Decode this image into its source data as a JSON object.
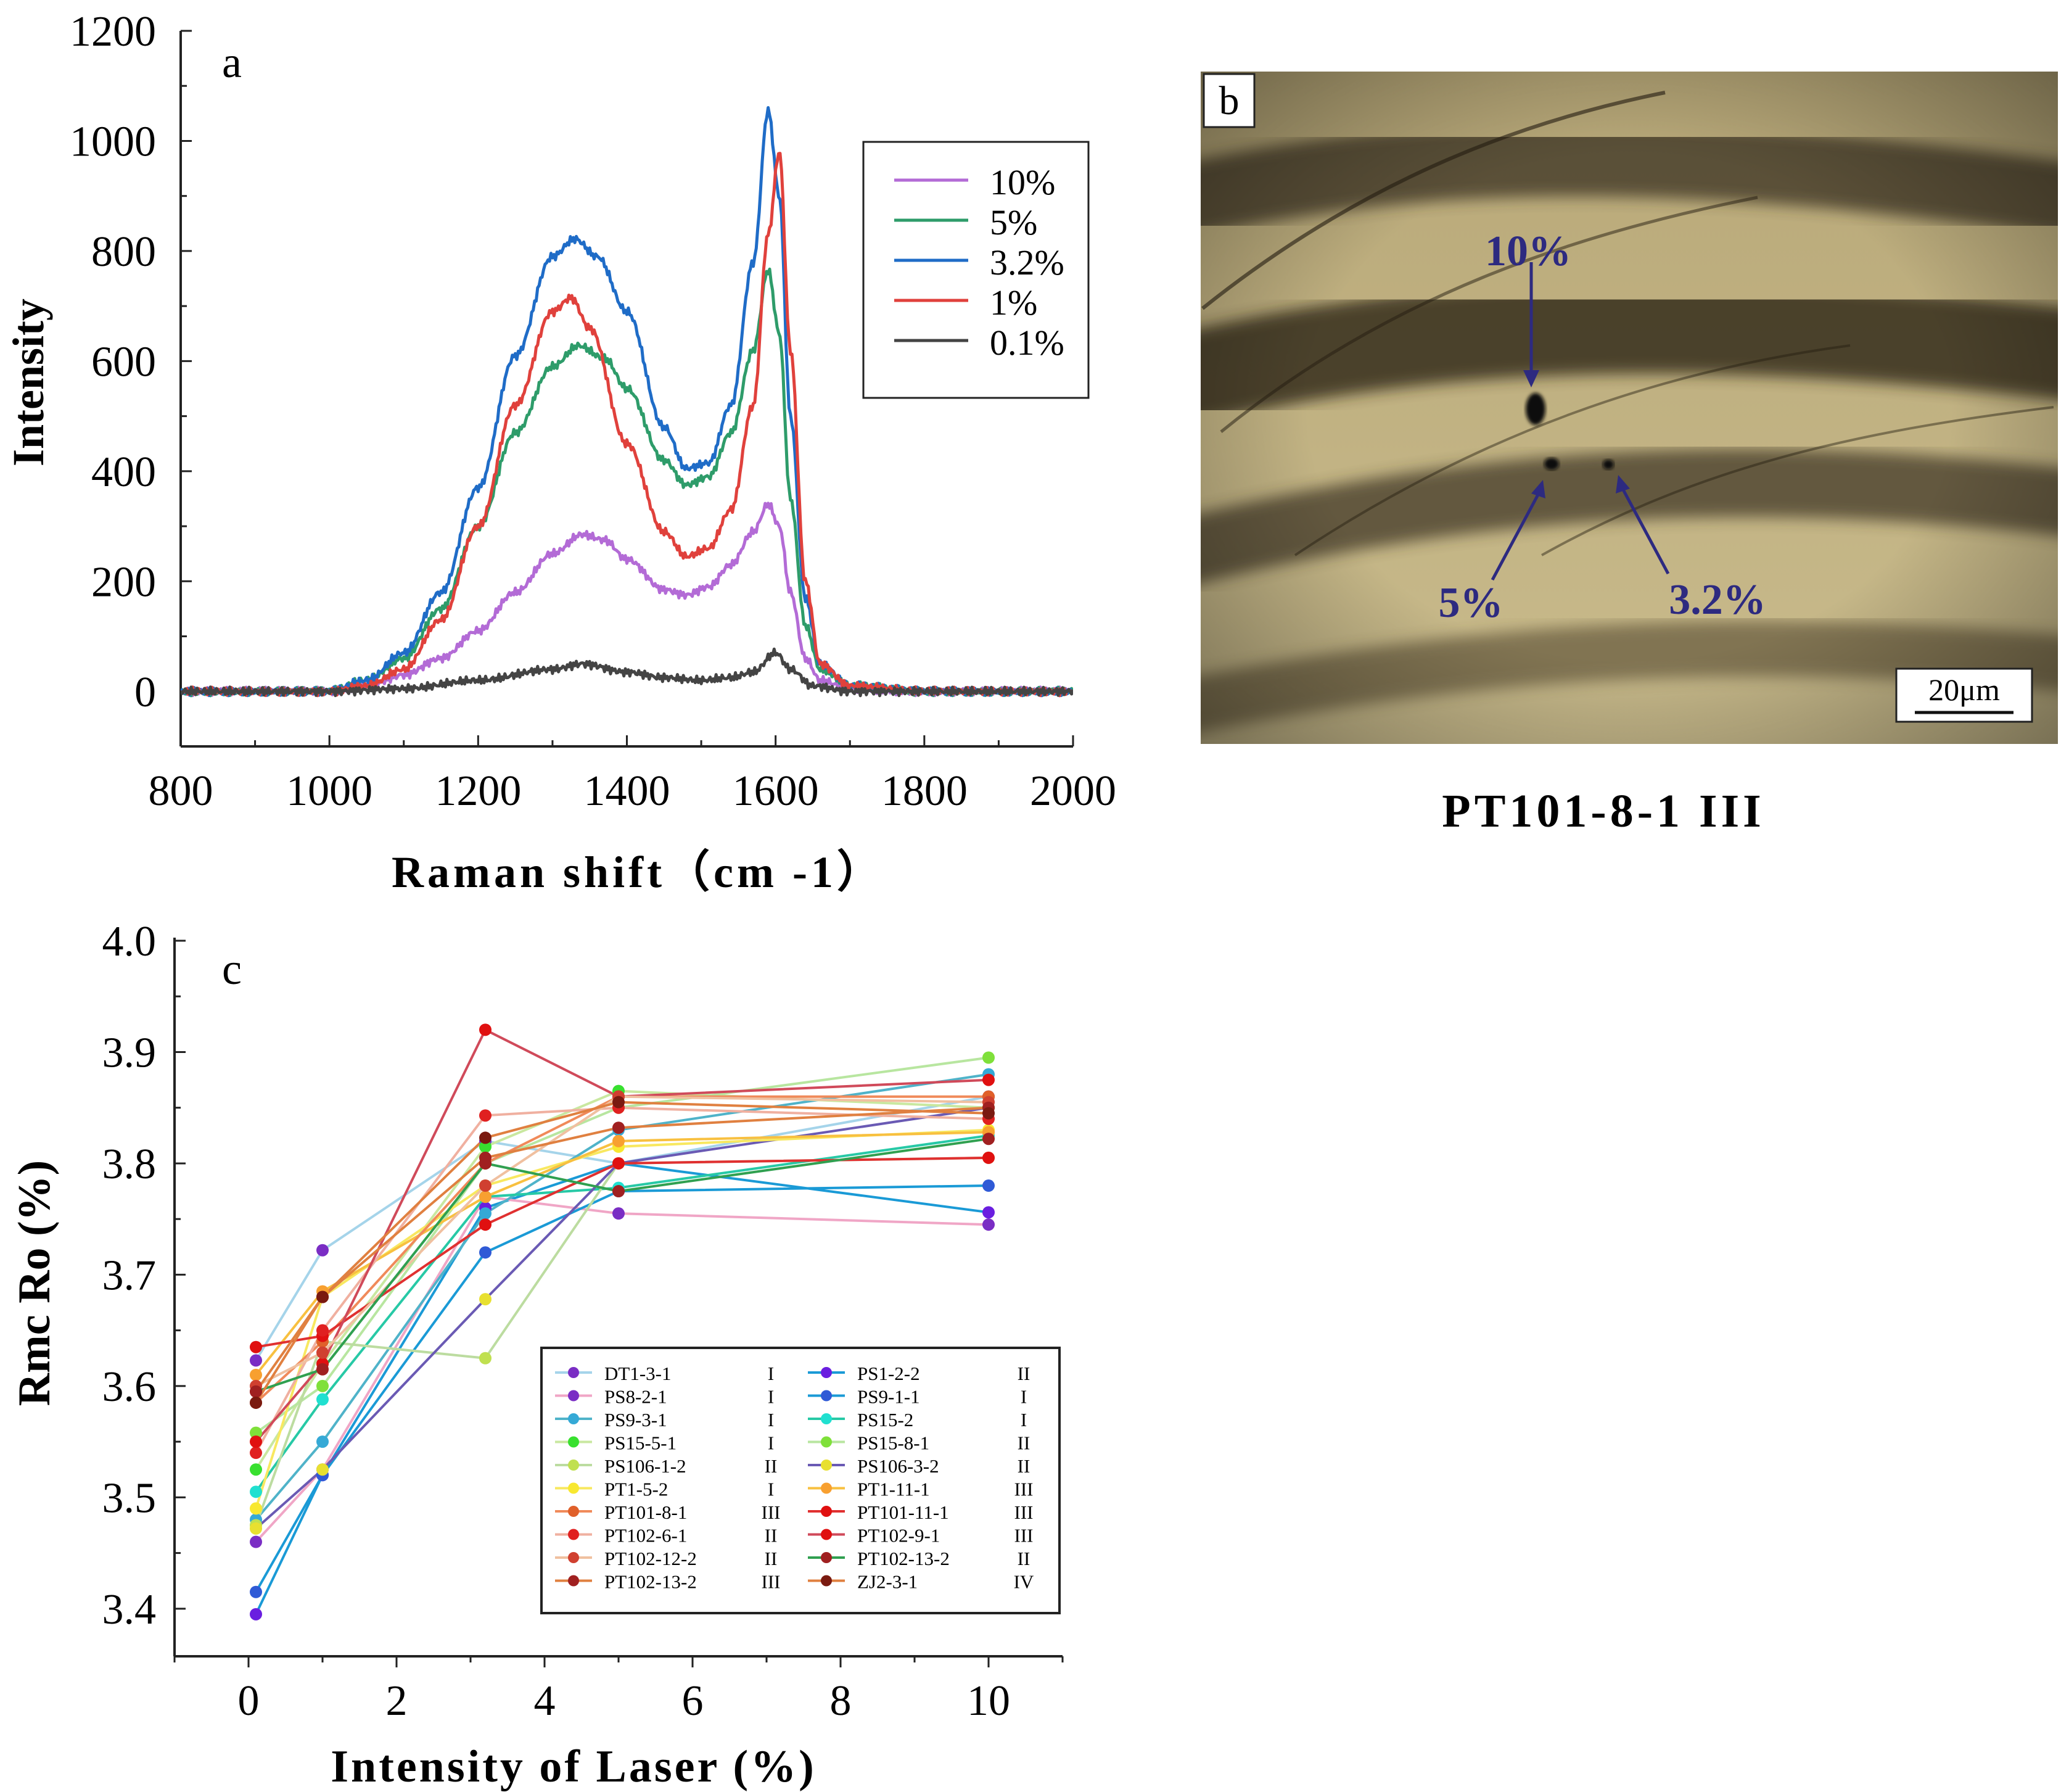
{
  "chart_data": [
    {
      "panel": "a",
      "type": "line",
      "xlabel": "Raman shift（cm -1）",
      "ylabel": "Intensity",
      "xlim": [
        800,
        2000
      ],
      "ylim": [
        -100,
        1200
      ],
      "xticks": [
        800,
        1000,
        1200,
        1400,
        1600,
        1800,
        2000
      ],
      "yticks": [
        0,
        200,
        400,
        600,
        800,
        1000,
        1200
      ],
      "legend_position": "top-right",
      "series": [
        {
          "name": "10%",
          "color": "#b36bd6",
          "x": [
            800,
            1000,
            1050,
            1100,
            1150,
            1200,
            1250,
            1300,
            1340,
            1370,
            1400,
            1450,
            1480,
            1510,
            1540,
            1570,
            1590,
            1605,
            1620,
            1640,
            1660,
            1700,
            1800,
            2000
          ],
          "y": [
            0,
            0,
            10,
            30,
            60,
            110,
            180,
            250,
            285,
            275,
            240,
            185,
            175,
            190,
            230,
            290,
            340,
            300,
            180,
            60,
            20,
            5,
            0,
            0
          ]
        },
        {
          "name": "5%",
          "color": "#2e9c6a",
          "x": [
            800,
            1000,
            1050,
            1100,
            1150,
            1200,
            1250,
            1300,
            1335,
            1370,
            1400,
            1450,
            1480,
            1510,
            1540,
            1570,
            1590,
            1605,
            1620,
            1640,
            1660,
            1700,
            1800,
            2000
          ],
          "y": [
            0,
            0,
            20,
            60,
            150,
            300,
            470,
            590,
            628,
            605,
            550,
            420,
            375,
            390,
            470,
            620,
            765,
            650,
            350,
            120,
            40,
            10,
            0,
            0
          ]
        },
        {
          "name": "3.2%",
          "color": "#1f6cc7",
          "x": [
            800,
            1000,
            1050,
            1100,
            1150,
            1200,
            1250,
            1300,
            1330,
            1360,
            1400,
            1450,
            1480,
            1510,
            1540,
            1570,
            1590,
            1605,
            1620,
            1640,
            1660,
            1700,
            1800,
            2000
          ],
          "y": [
            0,
            0,
            20,
            70,
            180,
            370,
            610,
            790,
            822,
            790,
            690,
            480,
            405,
            415,
            520,
            780,
            1055,
            900,
            500,
            170,
            50,
            10,
            0,
            0
          ]
        },
        {
          "name": "1%",
          "color": "#e0413c",
          "x": [
            800,
            1000,
            1050,
            1100,
            1150,
            1200,
            1250,
            1300,
            1325,
            1350,
            1400,
            1450,
            1480,
            1510,
            1540,
            1570,
            1590,
            1605,
            1620,
            1640,
            1660,
            1700,
            1800,
            2000
          ],
          "y": [
            0,
            0,
            10,
            40,
            130,
            300,
            520,
            690,
            715,
            660,
            450,
            290,
            245,
            260,
            330,
            520,
            830,
            980,
            620,
            200,
            50,
            10,
            0,
            0
          ]
        },
        {
          "name": "0.1%",
          "color": "#444444",
          "x": [
            800,
            1000,
            1100,
            1200,
            1300,
            1340,
            1400,
            1450,
            1500,
            1540,
            1570,
            1600,
            1620,
            1650,
            1700,
            1800,
            2000
          ],
          "y": [
            0,
            0,
            5,
            20,
            40,
            50,
            35,
            25,
            20,
            25,
            35,
            70,
            40,
            10,
            0,
            0,
            0
          ]
        }
      ]
    },
    {
      "panel": "c",
      "type": "line",
      "xlabel": "Intensity of Laser (%)",
      "ylabel": "Rmc Ro (%)",
      "xlim": [
        -1,
        11
      ],
      "ylim": [
        3.36,
        4.0
      ],
      "xticks": [
        0,
        2,
        4,
        6,
        8,
        10
      ],
      "yticks": [
        3.4,
        3.5,
        3.6,
        3.7,
        3.8,
        3.9,
        4.0
      ],
      "x": [
        0.1,
        1,
        3.2,
        5,
        10
      ],
      "legend_position": "bottom-right",
      "series": [
        {
          "name": "DT1-3-1",
          "grade": "I",
          "line_color": "#a5d4ea",
          "marker_color": "#7a2dc4",
          "values": [
            3.623,
            3.722,
            3.82,
            3.8,
            3.86
          ]
        },
        {
          "name": "PS1-2-2",
          "grade": "II",
          "line_color": "#1a9ad6",
          "marker_color": "#6a1ee0",
          "values": [
            3.395,
            3.52,
            3.76,
            3.8,
            3.756
          ]
        },
        {
          "name": "PS8-2-1",
          "grade": "I",
          "line_color": "#f0a6c6",
          "marker_color": "#7a2dc4",
          "values": [
            3.46,
            3.525,
            3.77,
            3.755,
            3.745
          ]
        },
        {
          "name": "PS9-1-1",
          "grade": "I",
          "line_color": "#1a9ad6",
          "marker_color": "#2f5ad6",
          "values": [
            3.415,
            3.52,
            3.72,
            3.775,
            3.78
          ]
        },
        {
          "name": "PS9-3-1",
          "grade": "I",
          "line_color": "#4fb3c9",
          "marker_color": "#35a9d6",
          "values": [
            3.48,
            3.55,
            3.755,
            3.83,
            3.88
          ]
        },
        {
          "name": "PS15-2",
          "grade": "I",
          "line_color": "#27c9a6",
          "marker_color": "#20e0d0",
          "values": [
            3.505,
            3.588,
            3.77,
            3.778,
            3.825
          ]
        },
        {
          "name": "PS15-5-1",
          "grade": "I",
          "line_color": "#c9e8a0",
          "marker_color": "#38e02f",
          "values": [
            3.525,
            3.62,
            3.815,
            3.865,
            3.85
          ]
        },
        {
          "name": "PS15-8-1",
          "grade": "II",
          "line_color": "#b8e6a0",
          "marker_color": "#7fe03a",
          "values": [
            3.558,
            3.6,
            3.8,
            3.85,
            3.895
          ]
        },
        {
          "name": "PS106-1-2",
          "grade": "II",
          "line_color": "#bcdca0",
          "marker_color": "#c0e050",
          "values": [
            3.475,
            3.64,
            3.625,
            3.8,
            3.805
          ]
        },
        {
          "name": "PS106-3-2",
          "grade": "II",
          "line_color": "#6a5ab4",
          "marker_color": "#e8e030",
          "values": [
            3.472,
            3.525,
            3.678,
            3.8,
            3.85
          ]
        },
        {
          "name": "PT1-5-2",
          "grade": "I",
          "line_color": "#f8e860",
          "marker_color": "#f8e830",
          "values": [
            3.49,
            3.68,
            3.78,
            3.815,
            3.83
          ]
        },
        {
          "name": "PT1-11-1",
          "grade": "III",
          "line_color": "#f8c040",
          "marker_color": "#f8a030",
          "values": [
            3.61,
            3.685,
            3.77,
            3.82,
            3.828
          ]
        },
        {
          "name": "PT101-8-1",
          "grade": "III",
          "line_color": "#f08a5a",
          "marker_color": "#e0602a",
          "values": [
            3.585,
            3.64,
            3.8,
            3.86,
            3.86
          ]
        },
        {
          "name": "PT101-11-1",
          "grade": "III",
          "line_color": "#e03030",
          "marker_color": "#e01010",
          "values": [
            3.635,
            3.645,
            3.745,
            3.8,
            3.805
          ]
        },
        {
          "name": "PT102-6-1",
          "grade": "II",
          "line_color": "#f0b0a0",
          "marker_color": "#e02020",
          "values": [
            3.54,
            3.65,
            3.843,
            3.85,
            3.84
          ]
        },
        {
          "name": "PT102-9-1",
          "grade": "III",
          "line_color": "#d04a5a",
          "marker_color": "#e01010",
          "values": [
            3.55,
            3.62,
            3.92,
            3.86,
            3.875
          ]
        },
        {
          "name": "PT102-12-2",
          "grade": "II",
          "line_color": "#f0c0a0",
          "marker_color": "#d04030",
          "values": [
            3.6,
            3.63,
            3.78,
            3.86,
            3.855
          ]
        },
        {
          "name": "PT102-13-2",
          "grade": "II",
          "line_color": "#30a050",
          "marker_color": "#a02020",
          "values": [
            3.595,
            3.615,
            3.8,
            3.775,
            3.822
          ]
        },
        {
          "name": "PT102-13-2",
          "grade": "III",
          "line_color": "#e08040",
          "marker_color": "#a02020",
          "values": [
            3.595,
            3.68,
            3.805,
            3.832,
            3.85
          ]
        },
        {
          "name": "ZJ2-3-1",
          "grade": "IV",
          "line_color": "#e08040",
          "marker_color": "#7a1a10",
          "values": [
            3.585,
            3.68,
            3.823,
            3.855,
            3.845
          ]
        }
      ]
    }
  ],
  "panel_labels": {
    "a": "a",
    "b": "b",
    "c": "c"
  },
  "micrograph": {
    "caption": "PT101-8-1 III",
    "scale_bar": "20μm",
    "annotations": [
      "10%",
      "5%",
      "3.2%"
    ]
  }
}
